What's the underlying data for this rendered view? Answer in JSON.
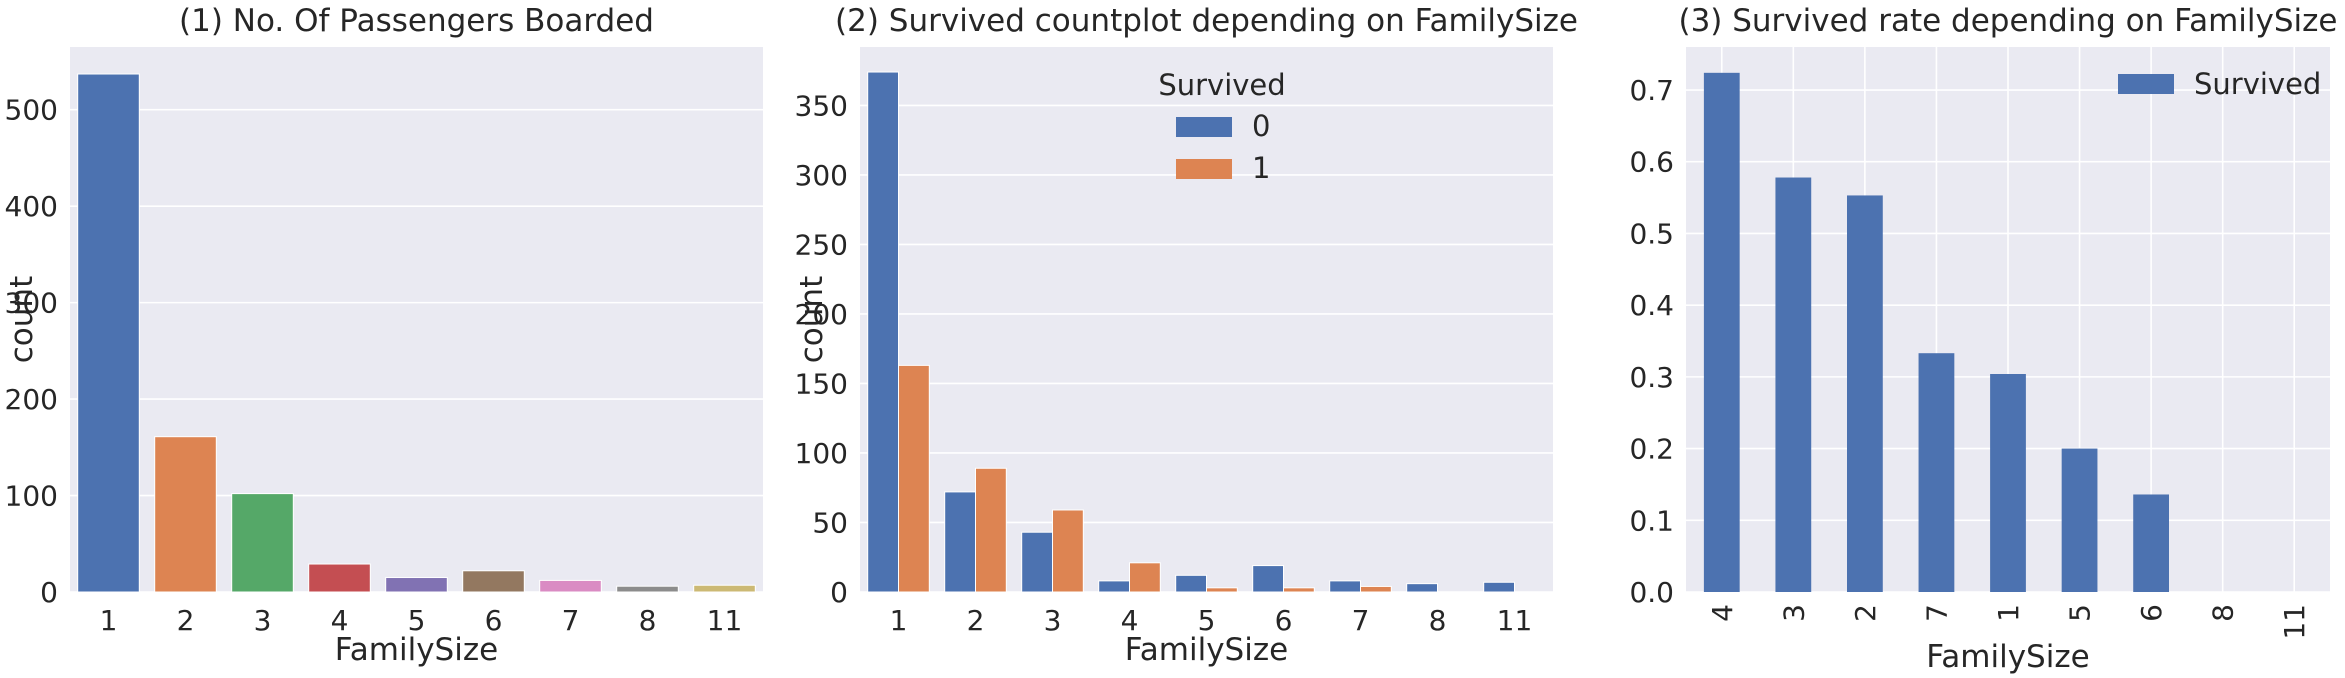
{
  "colors": {
    "plot_bg": "#EAEAF2",
    "grid": "#FFFFFF",
    "palette": [
      "#4C72B0",
      "#DD8452",
      "#55A868",
      "#C44E52",
      "#8172B3",
      "#937860",
      "#DA8BC3",
      "#8C8C8C",
      "#CCB974"
    ],
    "survived_0": "#4C72B0",
    "survived_1": "#DD8452",
    "bar3": "#4C72B0"
  },
  "chart_data": [
    {
      "type": "bar",
      "title": "(1) No. Of Passengers Boarded",
      "xlabel": "FamilySize",
      "ylabel": "count",
      "categories": [
        "1",
        "2",
        "3",
        "4",
        "5",
        "6",
        "7",
        "8",
        "11"
      ],
      "values": [
        537,
        161,
        102,
        29,
        15,
        22,
        12,
        6,
        7
      ],
      "ylim": [
        0,
        565
      ],
      "yticks": [
        0,
        100,
        200,
        300,
        400,
        500
      ],
      "grid": true,
      "legend": null
    },
    {
      "type": "bar",
      "title": "(2) Survived countplot depending on FamilySize",
      "xlabel": "FamilySize",
      "ylabel": "count",
      "categories": [
        "1",
        "2",
        "3",
        "4",
        "5",
        "6",
        "7",
        "8",
        "11"
      ],
      "series": [
        {
          "name": "0",
          "values": [
            374,
            72,
            43,
            8,
            12,
            19,
            8,
            6,
            7
          ]
        },
        {
          "name": "1",
          "values": [
            163,
            89,
            59,
            21,
            3,
            3,
            4,
            0,
            0
          ]
        }
      ],
      "ylim": [
        0,
        392
      ],
      "yticks": [
        0,
        50,
        100,
        150,
        200,
        250,
        300,
        350
      ],
      "grid": true,
      "legend": {
        "title": "Survived",
        "position": "upper-center"
      }
    },
    {
      "type": "bar",
      "title": "(3) Survived rate depending on FamilySize",
      "xlabel": "FamilySize",
      "ylabel": "",
      "categories": [
        "4",
        "3",
        "2",
        "7",
        "1",
        "5",
        "6",
        "8",
        "11"
      ],
      "series": [
        {
          "name": "Survived",
          "values": [
            0.724,
            0.578,
            0.553,
            0.333,
            0.304,
            0.2,
            0.136,
            0.0,
            0.0
          ]
        }
      ],
      "ylim": [
        0,
        0.76
      ],
      "yticks": [
        "0.0",
        "0.1",
        "0.2",
        "0.3",
        "0.4",
        "0.5",
        "0.6",
        "0.7"
      ],
      "xtick_rotation": 90,
      "grid": true,
      "legend": {
        "position": "upper-right"
      }
    }
  ]
}
